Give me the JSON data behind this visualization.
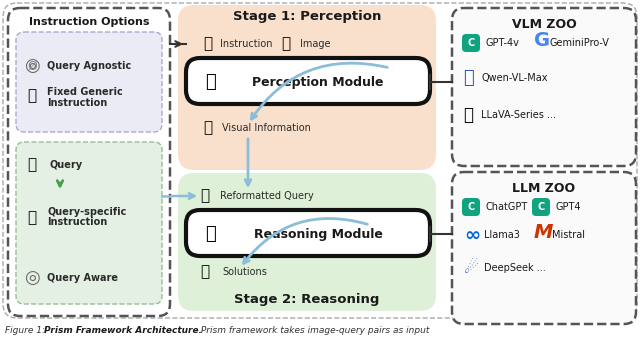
{
  "bg_color": "#ffffff",
  "stage1_bg": "#f9e0cc",
  "stage2_bg": "#dff0d8",
  "instr_top_bg": "#eaebf5",
  "instr_bot_bg": "#e5f0e5",
  "stage1_title": "Stage 1: Perception",
  "stage2_title": "Stage 2: Reasoning",
  "instruction_title": "Instruction Options",
  "vlm_title": "VLM ZOO",
  "llm_title": "LLM ZOO",
  "perception_module": "Perception Module",
  "reasoning_module": "Reasoning Module",
  "arrow_color": "#8bbdd9",
  "arrow_color2": "#5aaa5a",
  "text_color": "#1a1a1a",
  "vlm_items_left": [
    "GPT-4v",
    "Qwen-VL-Max",
    "LLaVA-Series ..."
  ],
  "vlm_items_right": [
    "GeminiPro-V"
  ],
  "llm_items_left": [
    "ChatGPT",
    "Llama3",
    "DeepSeek ..."
  ],
  "llm_items_right": [
    "GPT4",
    "Mistral"
  ]
}
